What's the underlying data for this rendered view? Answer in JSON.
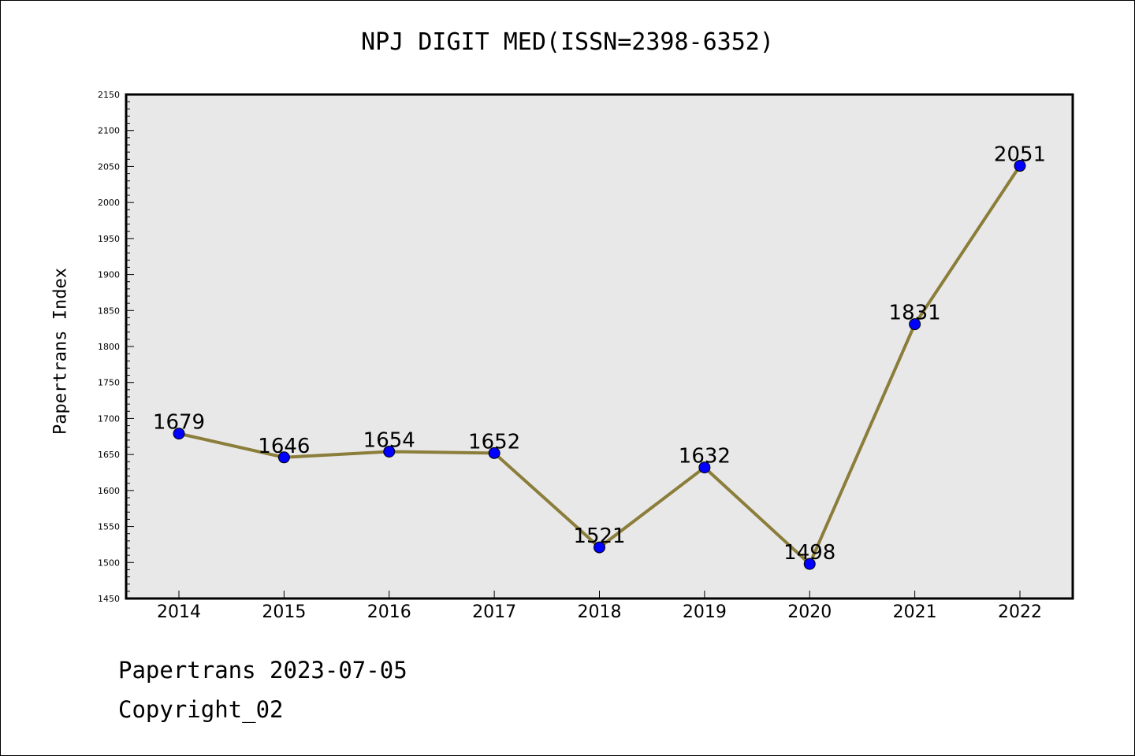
{
  "chart_data": {
    "type": "line",
    "title": "NPJ DIGIT MED(ISSN=2398-6352)",
    "xlabel": "",
    "ylabel": "Papertrans Index",
    "categories": [
      "2014",
      "2015",
      "2016",
      "2017",
      "2018",
      "2019",
      "2020",
      "2021",
      "2022"
    ],
    "series": [
      {
        "name": "Papertrans Index",
        "values": [
          1679,
          1646,
          1654,
          1652,
          1521,
          1632,
          1498,
          1831,
          2051
        ]
      }
    ],
    "data_labels": [
      "1679",
      "1646",
      "1654",
      "1652",
      "1521",
      "1632",
      "1498",
      "1831",
      "2051"
    ],
    "ylim": [
      1450,
      2150
    ],
    "yticks": [
      1450,
      1500,
      1550,
      1600,
      1650,
      1700,
      1750,
      1800,
      1850,
      1900,
      1950,
      2000,
      2050,
      2100,
      2150
    ],
    "grid": false,
    "line_color": "#8b7d3a",
    "marker_color": "#0000ff",
    "plot_background": "#e8e8e8"
  },
  "footer": {
    "date": "Papertrans 2023-07-05",
    "copyright": "Copyright_02"
  }
}
